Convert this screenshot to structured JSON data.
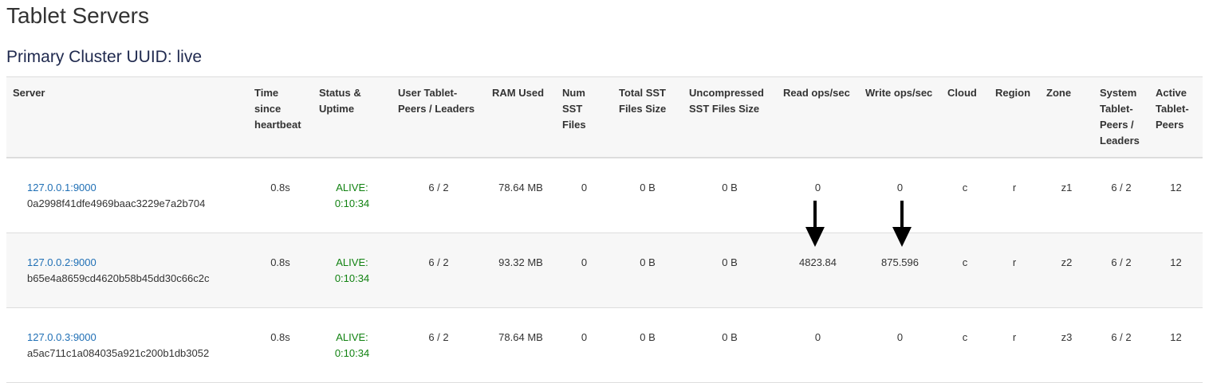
{
  "page_title": "Tablet Servers",
  "cluster_title": "Primary Cluster UUID: live",
  "columns": [
    "Server",
    "Time since heartbeat",
    "Status & Uptime",
    "User Tablet-Peers / Leaders",
    "RAM Used",
    "Num SST Files",
    "Total SST Files Size",
    "Uncompressed SST Files Size",
    "Read ops/sec",
    "Write ops/sec",
    "Cloud",
    "Region",
    "Zone",
    "System Tablet-Peers / Leaders",
    "Active Tablet-Peers"
  ],
  "rows": [
    {
      "address": "127.0.0.1:9000",
      "uuid": "0a2998f41dfe4969baac3229e7a2b704",
      "heartbeat": "0.8s",
      "status": "ALIVE:",
      "uptime": "0:10:34",
      "user_tablets": "6 / 2",
      "ram": "78.64 MB",
      "num_sst": "0",
      "total_sst": "0 B",
      "uncompressed_sst": "0 B",
      "read_ops": "0",
      "write_ops": "0",
      "cloud": "c",
      "region": "r",
      "zone": "z1",
      "system_tablets": "6 / 2",
      "active_tablets": "12"
    },
    {
      "address": "127.0.0.2:9000",
      "uuid": "b65e4a8659cd4620b58b45dd30c66c2c",
      "heartbeat": "0.8s",
      "status": "ALIVE:",
      "uptime": "0:10:34",
      "user_tablets": "6 / 2",
      "ram": "93.32 MB",
      "num_sst": "0",
      "total_sst": "0 B",
      "uncompressed_sst": "0 B",
      "read_ops": "4823.84",
      "write_ops": "875.596",
      "cloud": "c",
      "region": "r",
      "zone": "z2",
      "system_tablets": "6 / 2",
      "active_tablets": "12"
    },
    {
      "address": "127.0.0.3:9000",
      "uuid": "a5ac711c1a084035a921c200b1db3052",
      "heartbeat": "0.8s",
      "status": "ALIVE:",
      "uptime": "0:10:34",
      "user_tablets": "6 / 2",
      "ram": "78.64 MB",
      "num_sst": "0",
      "total_sst": "0 B",
      "uncompressed_sst": "0 B",
      "read_ops": "0",
      "write_ops": "0",
      "cloud": "c",
      "region": "r",
      "zone": "z3",
      "system_tablets": "6 / 2",
      "active_tablets": "12"
    }
  ],
  "colors": {
    "link": "#1f6fb5",
    "alive": "#118211",
    "heading": "#202a4f"
  },
  "annotations": [
    {
      "icon": "arrow-down-icon",
      "points_to": "read_ops"
    },
    {
      "icon": "arrow-down-icon",
      "points_to": "write_ops"
    }
  ]
}
